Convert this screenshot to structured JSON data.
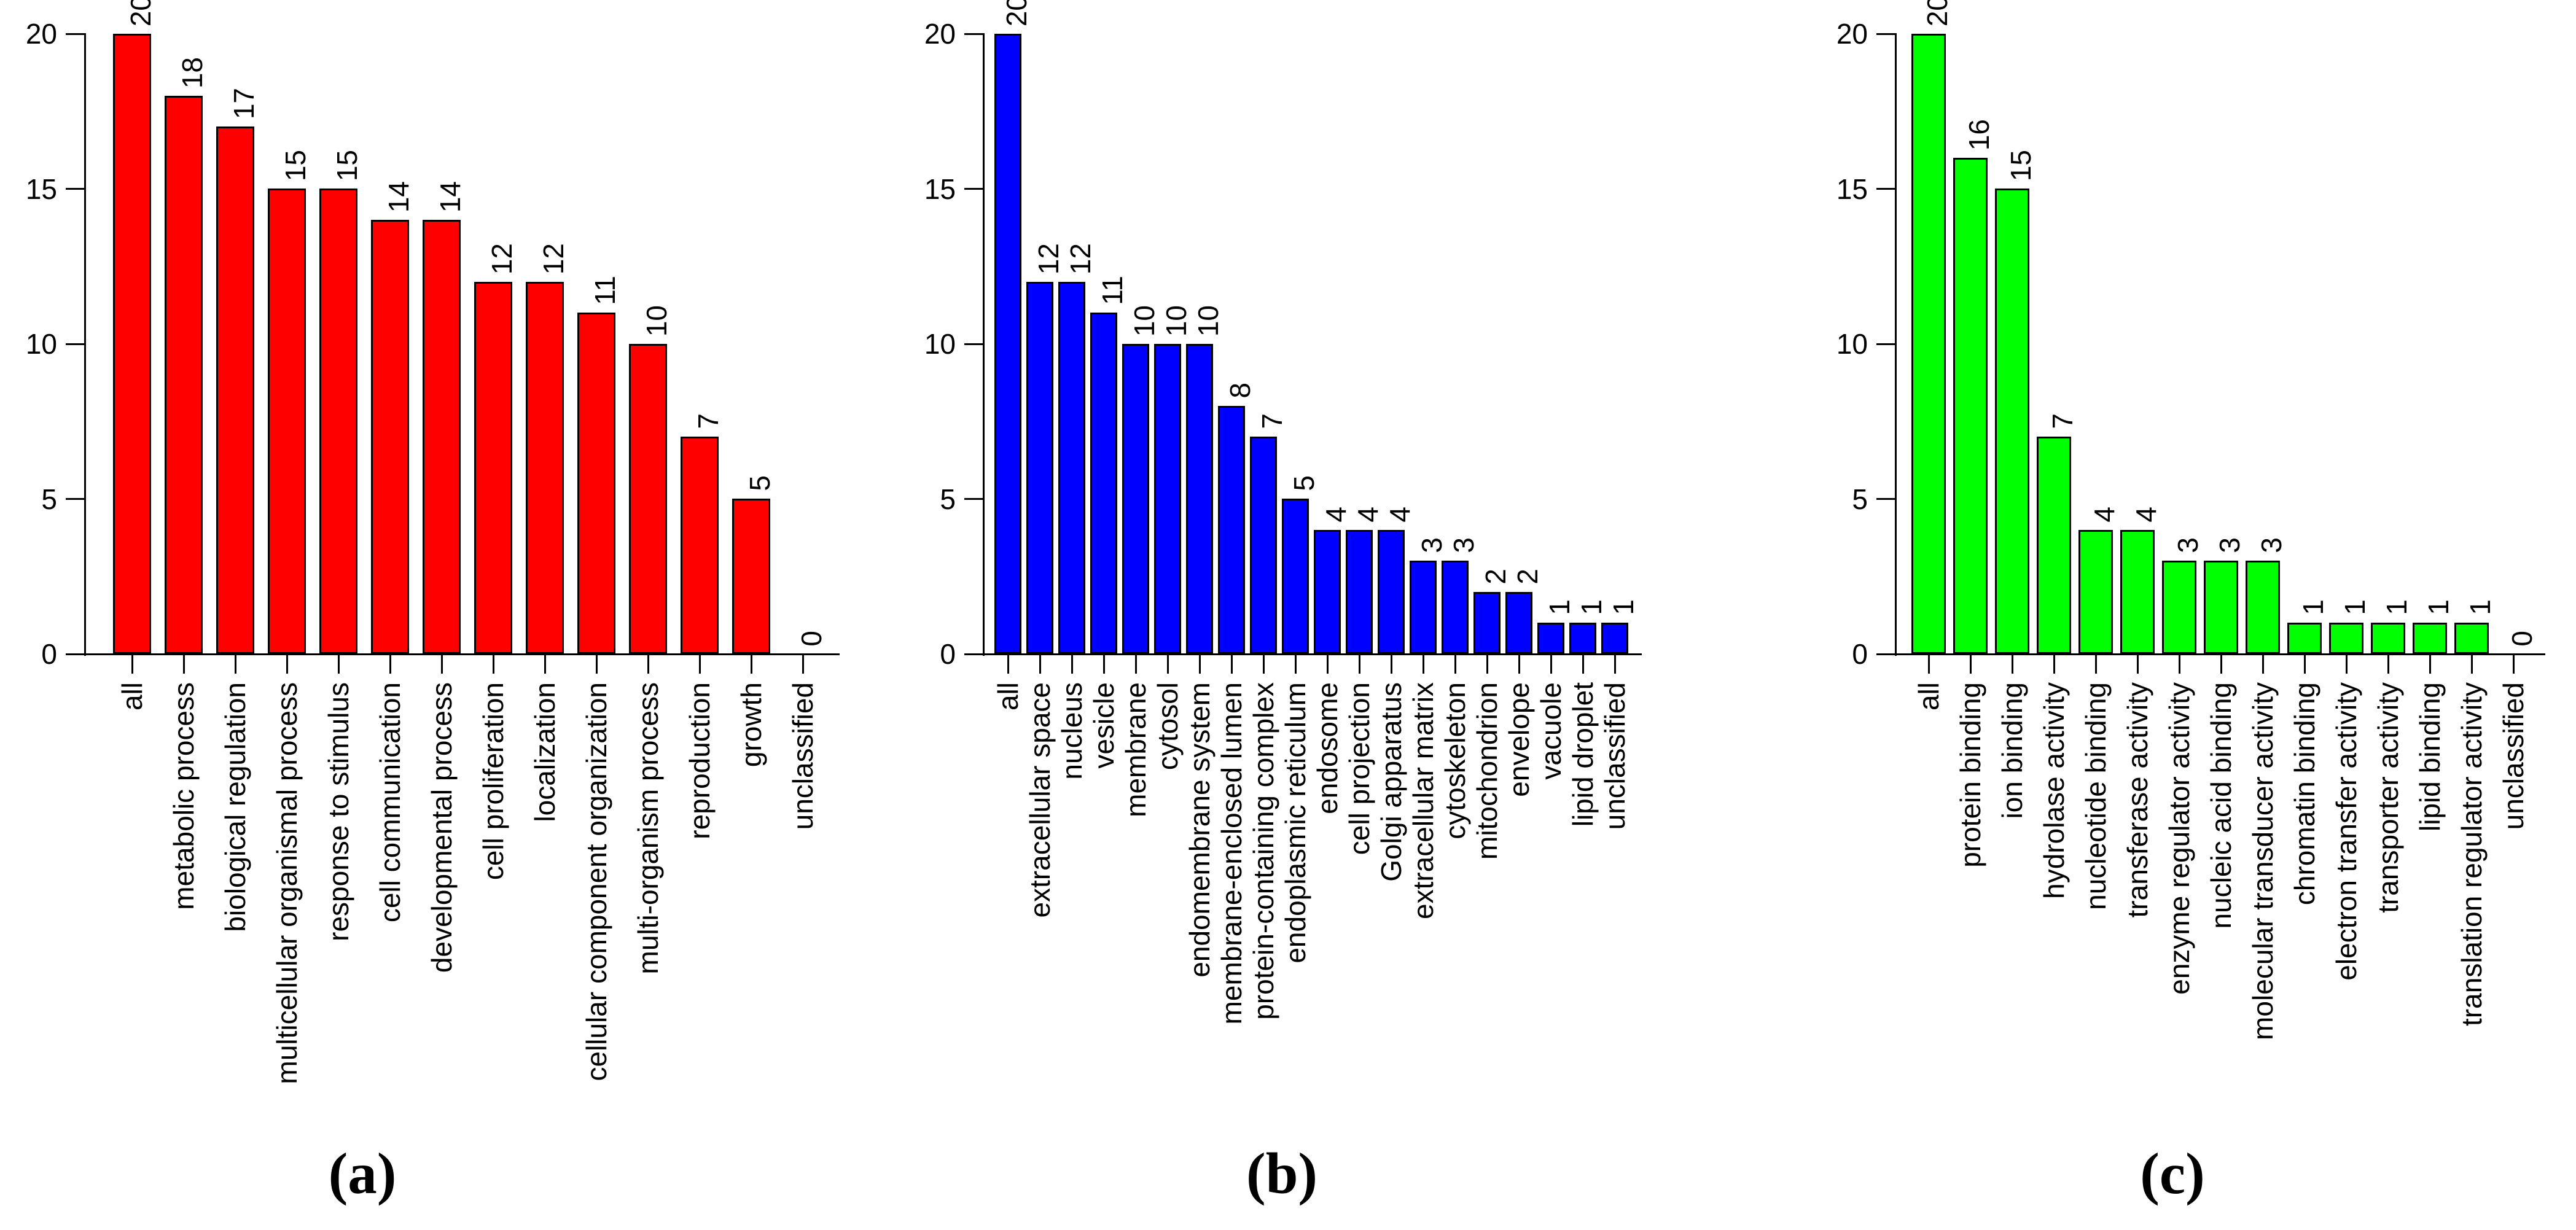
{
  "figure": {
    "background": "#ffffff",
    "axis_color": "#000000",
    "panel_letters": [
      "(a)",
      "(b)",
      "(c)"
    ]
  },
  "chart_data": [
    {
      "type": "bar",
      "panel_label": "(a)",
      "bar_color": "#FF0000",
      "title": "",
      "xlabel": "",
      "ylabel": "",
      "ylim": [
        0,
        20
      ],
      "y_ticks": [
        0,
        5,
        10,
        15,
        20
      ],
      "grid": false,
      "legend": null,
      "value_labels_shown": true,
      "category_label_rotation_deg": 90,
      "categories": [
        "all",
        "metabolic process",
        "biological regulation",
        "multicellular organismal process",
        "response to stimulus",
        "cell communication",
        "developmental process",
        "cell proliferation",
        "localization",
        "cellular component organization",
        "multi-organism process",
        "reproduction",
        "growth",
        "unclassified"
      ],
      "values": [
        20,
        18,
        17,
        15,
        15,
        14,
        14,
        12,
        12,
        11,
        10,
        7,
        5,
        0
      ]
    },
    {
      "type": "bar",
      "panel_label": "(b)",
      "bar_color": "#0000FF",
      "title": "",
      "xlabel": "",
      "ylabel": "",
      "ylim": [
        0,
        20
      ],
      "y_ticks": [
        0,
        5,
        10,
        15,
        20
      ],
      "grid": false,
      "legend": null,
      "value_labels_shown": true,
      "category_label_rotation_deg": 90,
      "categories": [
        "all",
        "extracellular space",
        "nucleus",
        "vesicle",
        "membrane",
        "cytosol",
        "endomembrane system",
        "membrane-enclosed lumen",
        "protein-containing complex",
        "endoplasmic reticulum",
        "endosome",
        "cell projection",
        "Golgi apparatus",
        "extracellular matrix",
        "cytoskeleton",
        "mitochondrion",
        "envelope",
        "vacuole",
        "lipid droplet",
        "unclassified"
      ],
      "values": [
        20,
        12,
        12,
        11,
        10,
        10,
        10,
        8,
        7,
        5,
        4,
        4,
        4,
        3,
        3,
        2,
        2,
        1,
        1,
        1
      ]
    },
    {
      "type": "bar",
      "panel_label": "(c)",
      "bar_color": "#00FF00",
      "title": "",
      "xlabel": "",
      "ylabel": "",
      "ylim": [
        0,
        20
      ],
      "y_ticks": [
        0,
        5,
        10,
        15,
        20
      ],
      "grid": false,
      "legend": null,
      "value_labels_shown": true,
      "category_label_rotation_deg": 90,
      "categories": [
        "all",
        "protein binding",
        "ion binding",
        "hydrolase activity",
        "nucleotide binding",
        "transferase activity",
        "enzyme regulator activity",
        "nucleic acid binding",
        "molecular transducer activity",
        "chromatin binding",
        "electron transfer activity",
        "transporter activity",
        "lipid binding",
        "translation regulator activity",
        "unclassified"
      ],
      "values": [
        20,
        16,
        15,
        7,
        4,
        4,
        3,
        3,
        3,
        1,
        1,
        1,
        1,
        1,
        0
      ]
    }
  ]
}
